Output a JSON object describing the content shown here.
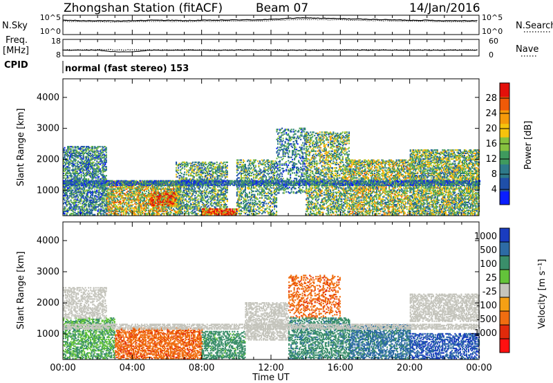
{
  "chart_data": [
    {
      "type": "line",
      "panel": "top-strip-noise",
      "title": "Zhongshan Station (fitACF)",
      "beam_label": "Beam 07",
      "date_label": "14/Jan/2016",
      "left_axis": {
        "label": "N.Sky",
        "ticks": [
          "10^5",
          "10^0"
        ]
      },
      "right_axis": {
        "label": "N.Search",
        "ticks": [
          "10^5",
          "10^0"
        ]
      },
      "x": [
        0,
        1,
        2,
        3,
        4,
        5,
        6,
        7,
        8,
        9,
        10,
        11,
        12,
        13,
        14,
        15,
        16,
        17,
        18,
        19,
        20,
        21,
        22,
        23,
        24
      ],
      "series": [
        {
          "values": [
            3.7,
            3.6,
            3.6,
            3.5,
            3.6,
            3.7,
            3.7,
            3.6,
            3.7,
            3.7,
            3.8,
            3.8,
            3.9,
            4.2,
            4.3,
            4.2,
            4.1,
            4.0,
            3.9,
            3.8,
            3.7,
            3.7,
            3.6,
            3.6,
            3.6
          ]
        },
        {
          "values": [
            3.4,
            3.3,
            3.3,
            3.2,
            3.3,
            3.4,
            3.4,
            3.3,
            3.4,
            3.4,
            3.5,
            3.5,
            3.6,
            3.8,
            3.9,
            3.8,
            3.8,
            3.7,
            3.6,
            3.5,
            3.4,
            3.4,
            3.3,
            3.3,
            3.3
          ]
        }
      ],
      "ylim": [
        0,
        5
      ]
    },
    {
      "type": "line",
      "panel": "frequency-nave",
      "left_axis": {
        "label": "Freq.",
        "unit": "[MHz]",
        "ticks": [
          "18",
          "8"
        ],
        "ylim": [
          8,
          18
        ]
      },
      "right_axis": {
        "label": "Nave",
        "ticks": [
          "60",
          "0"
        ],
        "ylim": [
          0,
          60
        ]
      },
      "x": [
        0,
        1,
        2,
        3,
        4,
        5,
        6,
        7,
        8,
        9,
        10,
        11,
        12,
        13,
        14,
        15,
        16,
        17,
        18,
        19,
        20,
        21,
        22,
        23,
        24
      ],
      "series": [
        {
          "values": [
            11.5,
            11.5,
            11.5,
            10.5,
            10.5,
            11.5,
            11.5,
            11.5,
            11.5,
            11.5,
            11.5,
            11.5,
            11.5,
            11.5,
            11.5,
            11.5,
            11.5,
            11.5,
            11.5,
            11.5,
            11.5,
            11.5,
            11.5,
            11.5,
            11.5
          ]
        },
        {
          "values": [
            22,
            22,
            23,
            22,
            22,
            22,
            22,
            22,
            22,
            22,
            22,
            22,
            22,
            22,
            22,
            22,
            22,
            22,
            22,
            22,
            22,
            22,
            22,
            22,
            22
          ]
        }
      ]
    },
    {
      "type": "heatmap",
      "panel": "cpid",
      "left_label": "CPID",
      "text": "normal (fast stereo) 153"
    },
    {
      "type": "heatmap",
      "panel": "power",
      "ylabel": "Slant Range [km]",
      "yticks": [
        1000,
        2000,
        3000,
        4000
      ],
      "ylim": [
        180,
        4600
      ],
      "xlim": [
        0,
        24
      ],
      "colorbar": {
        "label": "Power [dB]",
        "ticks": [
          4,
          8,
          12,
          16,
          20,
          24,
          28
        ],
        "range": [
          0,
          32
        ]
      },
      "bands": [
        {
          "t0": 0.0,
          "t1": 2.5,
          "r0": 200,
          "r1": 2400,
          "v": 10,
          "d": 0.55
        },
        {
          "t0": 2.5,
          "t1": 6.8,
          "r0": 200,
          "r1": 1300,
          "v": 18,
          "d": 0.6
        },
        {
          "t0": 5.0,
          "t1": 6.5,
          "r0": 500,
          "r1": 900,
          "v": 26,
          "d": 0.7
        },
        {
          "t0": 6.5,
          "t1": 9.5,
          "r0": 200,
          "r1": 1900,
          "v": 12,
          "d": 0.45
        },
        {
          "t0": 8.0,
          "t1": 10.0,
          "r0": 200,
          "r1": 400,
          "v": 28,
          "d": 0.8
        },
        {
          "t0": 10.0,
          "t1": 12.3,
          "r0": 200,
          "r1": 2000,
          "v": 12,
          "d": 0.4
        },
        {
          "t0": 12.3,
          "t1": 14.0,
          "r0": 900,
          "r1": 3000,
          "v": 9,
          "d": 0.3
        },
        {
          "t0": 14.0,
          "t1": 16.5,
          "r0": 200,
          "r1": 2900,
          "v": 14,
          "d": 0.45
        },
        {
          "t0": 16.5,
          "t1": 20.0,
          "r0": 200,
          "r1": 2000,
          "v": 16,
          "d": 0.55
        },
        {
          "t0": 20.0,
          "t1": 24.0,
          "r0": 200,
          "r1": 2300,
          "v": 14,
          "d": 0.6
        },
        {
          "t0": 0.0,
          "t1": 24.0,
          "r0": 1150,
          "r1": 1300,
          "v": 8,
          "d": 0.7
        }
      ]
    },
    {
      "type": "heatmap",
      "panel": "velocity",
      "ylabel": "Slant Range [km]",
      "yticks": [
        1000,
        2000,
        3000,
        4000
      ],
      "ylim": [
        180,
        4600
      ],
      "xlim": [
        0,
        24
      ],
      "xticks": [
        "00:00",
        "04:00",
        "08:00",
        "12:00",
        "16:00",
        "20:00",
        "00:00"
      ],
      "xlabel": "Time UT",
      "colorbar": {
        "label": "Velocity [m s⁻¹]",
        "ticks": [
          "1000",
          "500",
          "100",
          "25",
          "-25",
          "-100",
          "-500",
          "-1000"
        ]
      },
      "bands": [
        {
          "t0": 0.0,
          "t1": 3.0,
          "r0": 200,
          "r1": 1500,
          "v": 100,
          "d": 0.5
        },
        {
          "t0": 0.0,
          "t1": 2.5,
          "r0": 1500,
          "r1": 2500,
          "v": 0,
          "d": 0.45
        },
        {
          "t0": 3.0,
          "t1": 8.0,
          "r0": 200,
          "r1": 1200,
          "v": -200,
          "d": 0.55
        },
        {
          "t0": 8.0,
          "t1": 10.5,
          "r0": 200,
          "r1": 1100,
          "v": 150,
          "d": 0.5
        },
        {
          "t0": 10.5,
          "t1": 13.0,
          "r0": 800,
          "r1": 2000,
          "v": 0,
          "d": 0.5
        },
        {
          "t0": 13.0,
          "t1": 16.0,
          "r0": 1500,
          "r1": 2900,
          "v": -200,
          "d": 0.3
        },
        {
          "t0": 13.0,
          "t1": 16.5,
          "r0": 200,
          "r1": 1500,
          "v": 200,
          "d": 0.45
        },
        {
          "t0": 16.5,
          "t1": 20.0,
          "r0": 200,
          "r1": 1300,
          "v": 300,
          "d": 0.55
        },
        {
          "t0": 20.0,
          "t1": 24.0,
          "r0": 1400,
          "r1": 2300,
          "v": 0,
          "d": 0.55
        },
        {
          "t0": 20.0,
          "t1": 24.0,
          "r0": 200,
          "r1": 1000,
          "v": 500,
          "d": 0.5
        },
        {
          "t0": 0.0,
          "t1": 24.0,
          "r0": 1150,
          "r1": 1300,
          "v": 0,
          "d": 0.6
        }
      ]
    }
  ],
  "colors": {
    "power_scale": [
      "#0a1eff",
      "#1f4fa8",
      "#2e7a8a",
      "#3f9a5e",
      "#86c13f",
      "#f6c30d",
      "#f59a0a",
      "#ef5a08",
      "#e3100a"
    ],
    "velocity_scale": [
      "#1a3cc0",
      "#2d6ba5",
      "#3a8e6a",
      "#63c33a",
      "#c5c5bd",
      "#f5a014",
      "#f06d10",
      "#e22a0b",
      "#ff1010"
    ]
  }
}
